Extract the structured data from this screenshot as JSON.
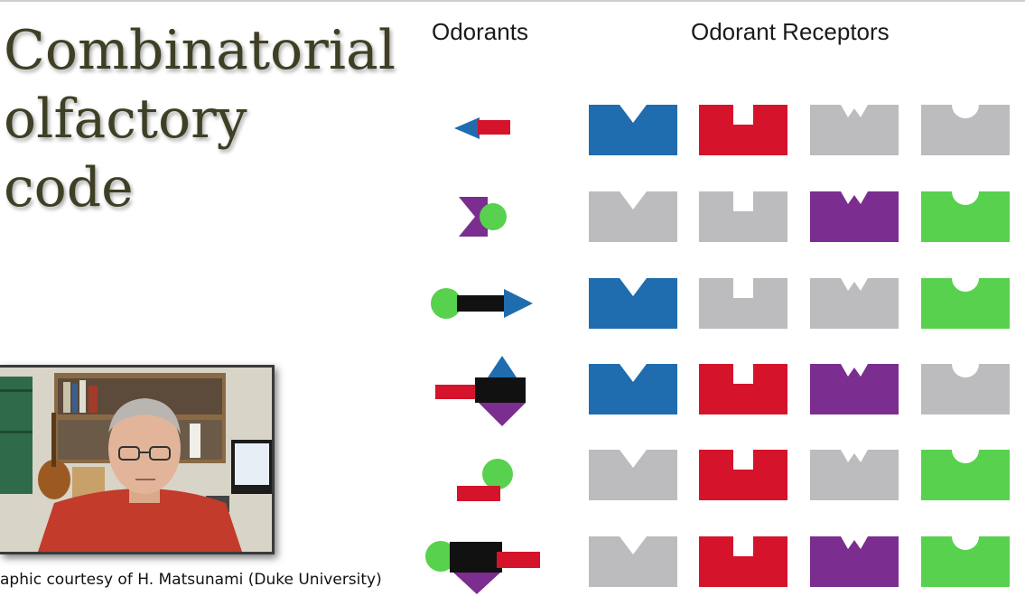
{
  "slide": {
    "title_line1": "Combinatorial",
    "title_line2": "olfactory code",
    "odorants_header": "Odorants",
    "receptors_header": "Odorant Receptors",
    "credit": "aphic courtesy of H. Matsunami (Duke University)"
  },
  "colors": {
    "blue": "#1f6cae",
    "red": "#d5132b",
    "purple": "#7b2d90",
    "green": "#58d14e",
    "gray": "#bcbcbf",
    "black": "#111111"
  },
  "receptor_types": [
    "v-notch",
    "square-notch",
    "w-notch",
    "round-notch"
  ],
  "receptor_grid": [
    [
      "blue",
      "red",
      "gray",
      "gray"
    ],
    [
      "gray",
      "gray",
      "purple",
      "green"
    ],
    [
      "blue",
      "gray",
      "gray",
      "green"
    ],
    [
      "blue",
      "red",
      "purple",
      "gray"
    ],
    [
      "gray",
      "red",
      "gray",
      "green"
    ],
    [
      "gray",
      "red",
      "purple",
      "green"
    ]
  ],
  "odorant_names": [
    "odorant-blue-triangle-red-bar",
    "odorant-purple-w-green-circle",
    "odorant-green-circle-black-bar-blue-triangle",
    "odorant-red-bar-black-block-blue-purple",
    "odorant-red-bar-green-circle",
    "odorant-green-circle-black-block-red-bar-purple"
  ],
  "video": {
    "icon": "webcam-video-presenter"
  }
}
